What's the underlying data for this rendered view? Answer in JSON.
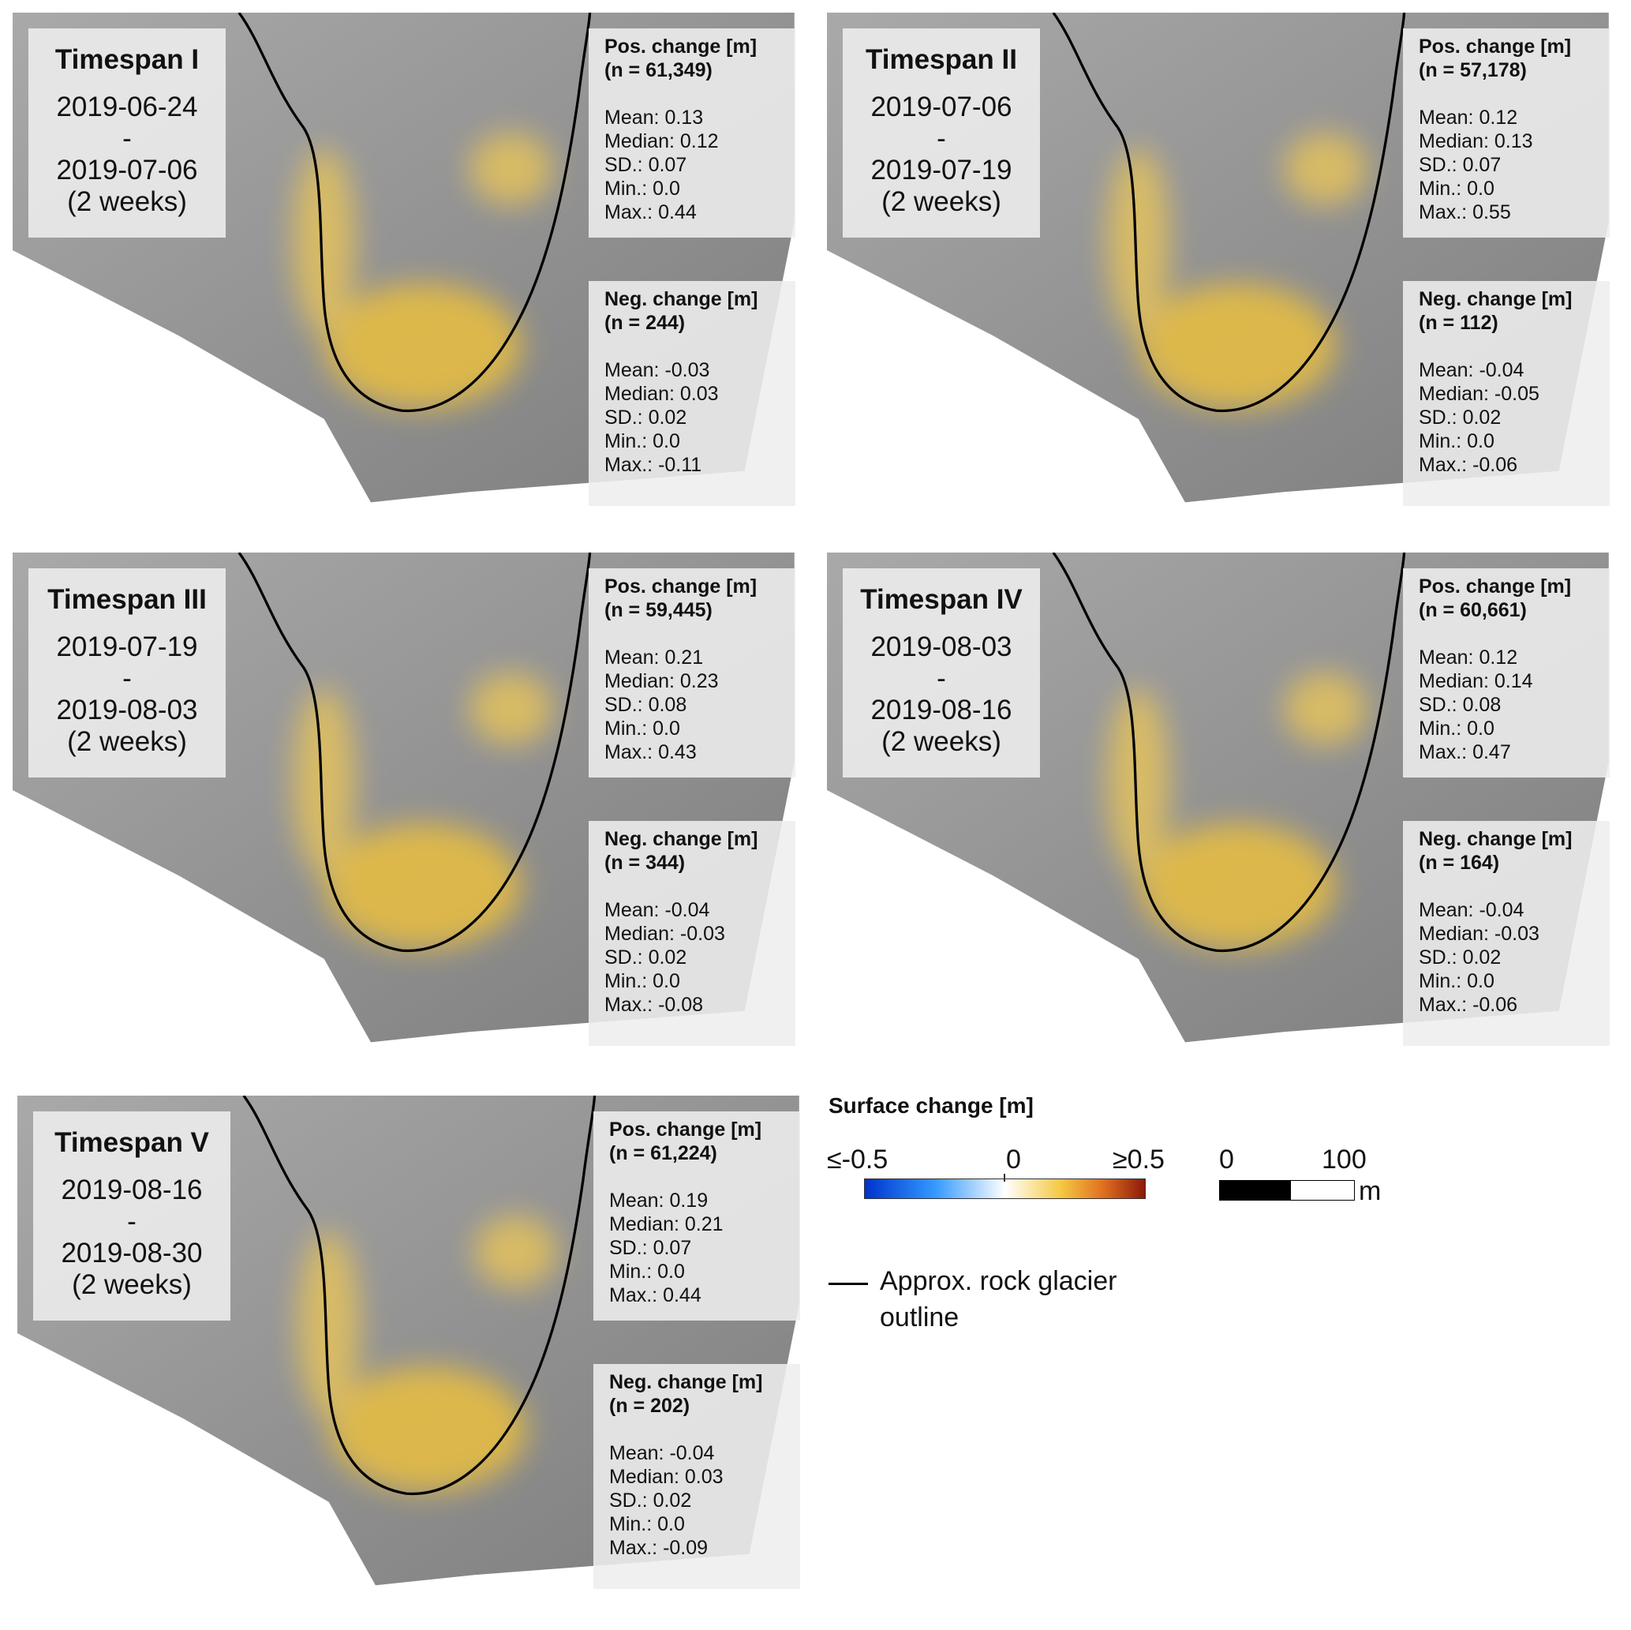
{
  "panels": [
    {
      "title": "Timespan I",
      "start": "2019-06-24",
      "separator": "-",
      "end": "2019-07-06",
      "duration": "(2 weeks)",
      "pos": {
        "heading": "Pos. change [m]",
        "n": "(n = 61,349)",
        "stats": [
          {
            "label": "Mean:",
            "value": "0.13"
          },
          {
            "label": "Median:",
            "value": "0.12"
          },
          {
            "label": "SD.:",
            "value": "0.07"
          },
          {
            "label": "Min.:",
            "value": "0.0"
          },
          {
            "label": "Max.:",
            "value": "0.44"
          }
        ]
      },
      "neg": {
        "heading": "Neg. change [m]",
        "n": "(n = 244)",
        "stats": [
          {
            "label": "Mean:",
            "value": "-0.03"
          },
          {
            "label": "Median:",
            "value": "0.03"
          },
          {
            "label": "SD.:",
            "value": "0.02"
          },
          {
            "label": "Min.:",
            "value": "0.0"
          },
          {
            "label": "Max.:",
            "value": "-0.11"
          }
        ]
      }
    },
    {
      "title": "Timespan II",
      "start": "2019-07-06",
      "separator": "-",
      "end": "2019-07-19",
      "duration": "(2 weeks)",
      "pos": {
        "heading": "Pos. change [m]",
        "n": "(n = 57,178)",
        "stats": [
          {
            "label": "Mean:",
            "value": "0.12"
          },
          {
            "label": "Median:",
            "value": "0.13"
          },
          {
            "label": "SD.:",
            "value": "0.07"
          },
          {
            "label": "Min.:",
            "value": "0.0"
          },
          {
            "label": "Max.:",
            "value": "0.55"
          }
        ]
      },
      "neg": {
        "heading": "Neg. change [m]",
        "n": "(n = 112)",
        "stats": [
          {
            "label": "Mean:",
            "value": "-0.04"
          },
          {
            "label": "Median:",
            "value": "-0.05"
          },
          {
            "label": "SD.:",
            "value": "0.02"
          },
          {
            "label": "Min.:",
            "value": "0.0"
          },
          {
            "label": "Max.:",
            "value": "-0.06"
          }
        ]
      }
    },
    {
      "title": "Timespan III",
      "start": "2019-07-19",
      "separator": "-",
      "end": "2019-08-03",
      "duration": "(2 weeks)",
      "pos": {
        "heading": "Pos. change [m]",
        "n": "(n = 59,445)",
        "stats": [
          {
            "label": "Mean:",
            "value": "0.21"
          },
          {
            "label": "Median:",
            "value": "0.23"
          },
          {
            "label": "SD.:",
            "value": "0.08"
          },
          {
            "label": "Min.:",
            "value": "0.0"
          },
          {
            "label": "Max.:",
            "value": "0.43"
          }
        ]
      },
      "neg": {
        "heading": "Neg. change [m]",
        "n": "(n = 344)",
        "stats": [
          {
            "label": "Mean:",
            "value": "-0.04"
          },
          {
            "label": "Median:",
            "value": "-0.03"
          },
          {
            "label": "SD.:",
            "value": "0.02"
          },
          {
            "label": "Min.:",
            "value": "0.0"
          },
          {
            "label": "Max.:",
            "value": "-0.08"
          }
        ]
      }
    },
    {
      "title": "Timespan IV",
      "start": "2019-08-03",
      "separator": "-",
      "end": "2019-08-16",
      "duration": "(2 weeks)",
      "pos": {
        "heading": "Pos. change [m]",
        "n": "(n = 60,661)",
        "stats": [
          {
            "label": "Mean:",
            "value": "0.12"
          },
          {
            "label": "Median:",
            "value": "0.14"
          },
          {
            "label": "SD.:",
            "value": "0.08"
          },
          {
            "label": "Min.:",
            "value": "0.0"
          },
          {
            "label": "Max.:",
            "value": "0.47"
          }
        ]
      },
      "neg": {
        "heading": "Neg. change [m]",
        "n": "(n = 164)",
        "stats": [
          {
            "label": "Mean:",
            "value": "-0.04"
          },
          {
            "label": "Median:",
            "value": "-0.03"
          },
          {
            "label": "SD.:",
            "value": "0.02"
          },
          {
            "label": "Min.:",
            "value": "0.0"
          },
          {
            "label": "Max.:",
            "value": "-0.06"
          }
        ]
      }
    },
    {
      "title": "Timespan V",
      "start": "2019-08-16",
      "separator": "-",
      "end": "2019-08-30",
      "duration": "(2 weeks)",
      "pos": {
        "heading": "Pos. change [m]",
        "n": "(n = 61,224)",
        "stats": [
          {
            "label": "Mean:",
            "value": "0.19"
          },
          {
            "label": "Median:",
            "value": "0.21"
          },
          {
            "label": "SD.:",
            "value": "0.07"
          },
          {
            "label": "Min.:",
            "value": "0.0"
          },
          {
            "label": "Max.:",
            "value": "0.44"
          }
        ]
      },
      "neg": {
        "heading": "Neg. change [m]",
        "n": "(n = 202)",
        "stats": [
          {
            "label": "Mean:",
            "value": "-0.04"
          },
          {
            "label": "Median:",
            "value": "0.03"
          },
          {
            "label": "SD.:",
            "value": "0.02"
          },
          {
            "label": "Min.:",
            "value": "0.0"
          },
          {
            "label": "Max.:",
            "value": "-0.09"
          }
        ]
      }
    }
  ],
  "legend": {
    "title": "Surface change [m]",
    "colorbar_labels": [
      "≤-0.5",
      "0",
      "≥0.5"
    ],
    "scale_labels": [
      "0",
      "100"
    ],
    "scale_unit": "m",
    "outline_label": "Approx. rock glacier outline"
  }
}
